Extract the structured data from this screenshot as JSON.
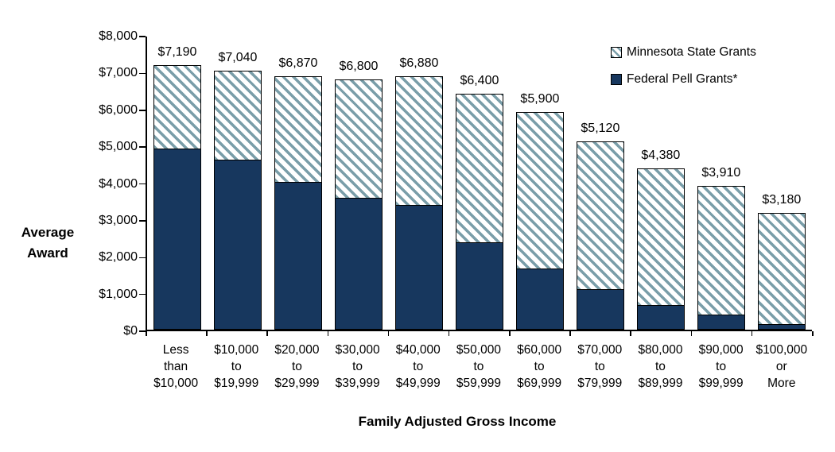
{
  "chart_data": {
    "type": "bar",
    "stacked": true,
    "title": "",
    "xlabel": "Family Adjusted Gross Income",
    "ylabel": "Average Award",
    "ylabel_lines": [
      "Average",
      "Award"
    ],
    "ylim": [
      0,
      8000
    ],
    "ytick_interval": 1000,
    "yticks": [
      "$8,000",
      "$7,000",
      "$6,000",
      "$5,000",
      "$4,000",
      "$3,000",
      "$2,000",
      "$1,000",
      "$0"
    ],
    "grid": false,
    "legend_position": "top-right",
    "categories": [
      "Less than $10,000",
      "$10,000 to $19,999",
      "$20,000 to $29,999",
      "$30,000 to $39,999",
      "$40,000 to $49,999",
      "$50,000 to $59,999",
      "$60,000 to $69,999",
      "$70,000 to $79,999",
      "$80,000 to $89,999",
      "$90,000 to $99,999",
      "$100,000 or More"
    ],
    "categories_lines": [
      [
        "Less",
        "than",
        "$10,000"
      ],
      [
        "$10,000",
        "to",
        "$19,999"
      ],
      [
        "$20,000",
        "to",
        "$29,999"
      ],
      [
        "$30,000",
        "to",
        "$39,999"
      ],
      [
        "$40,000",
        "to",
        "$49,999"
      ],
      [
        "$50,000",
        "to",
        "$59,999"
      ],
      [
        "$60,000",
        "to",
        "$69,999"
      ],
      [
        "$70,000",
        "to",
        "$79,999"
      ],
      [
        "$80,000",
        "to",
        "$89,999"
      ],
      [
        "$90,000",
        "to",
        "$99,999"
      ],
      [
        "$100,000",
        "or",
        "More"
      ]
    ],
    "series": [
      {
        "name": "Federal Pell Grants*",
        "color": "#17375E",
        "fill": "solid",
        "values": [
          4890,
          4600,
          4000,
          3560,
          3370,
          2360,
          1640,
          1090,
          650,
          380,
          140
        ]
      },
      {
        "name": "Minnesota State Grants",
        "color": "#7A9EA9",
        "fill": "diagonal-hatch",
        "values": [
          2300,
          2440,
          2870,
          3240,
          3510,
          4040,
          4260,
          4030,
          3730,
          3530,
          3040
        ]
      }
    ],
    "totals": [
      7190,
      7040,
      6870,
      6800,
      6880,
      6400,
      5900,
      5120,
      4380,
      3910,
      3180
    ],
    "total_labels": [
      "$7,190",
      "$7,040",
      "$6,870",
      "$6,800",
      "$6,880",
      "$6,400",
      "$5,900",
      "$5,120",
      "$4,380",
      "$3,910",
      "$3,180"
    ]
  },
  "legend": {
    "items": [
      {
        "label": "Minnesota State Grants",
        "swatch": "hatch"
      },
      {
        "label": "Federal Pell Grants*",
        "swatch": "solid"
      }
    ]
  },
  "colors": {
    "pell_navy": "#17375E",
    "state_grant_teal": "#7A9EA9",
    "axis": "#000000",
    "background": "#FFFFFF",
    "text": "#000000"
  }
}
